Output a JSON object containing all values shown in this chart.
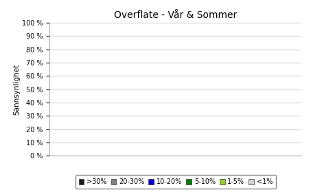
{
  "title": "Overflate - Vår & Sommer",
  "ylabel": "Sannsynlighet",
  "ylim": [
    0,
    1.0
  ],
  "yticks": [
    0.0,
    0.1,
    0.2,
    0.3,
    0.4,
    0.5,
    0.6,
    0.7,
    0.8,
    0.9,
    1.0
  ],
  "ytick_labels": [
    "0 %",
    "10 %",
    "20 %",
    "30 %",
    "40 %",
    "50 %",
    "60 %",
    "70 %",
    "80 %",
    "90 %",
    "100 %"
  ],
  "legend_entries": [
    ">30%",
    "20-30%",
    "10-20%",
    "5-10%",
    "1-5%",
    "<1%"
  ],
  "legend_colors": [
    "#1a1a1a",
    "#808080",
    "#0000cd",
    "#008000",
    "#9acd32",
    "#d3d3d3"
  ],
  "background_color": "#ffffff",
  "grid_color": "#d3d3d3",
  "title_fontsize": 10,
  "label_fontsize": 7.5,
  "tick_fontsize": 7,
  "legend_fontsize": 7
}
